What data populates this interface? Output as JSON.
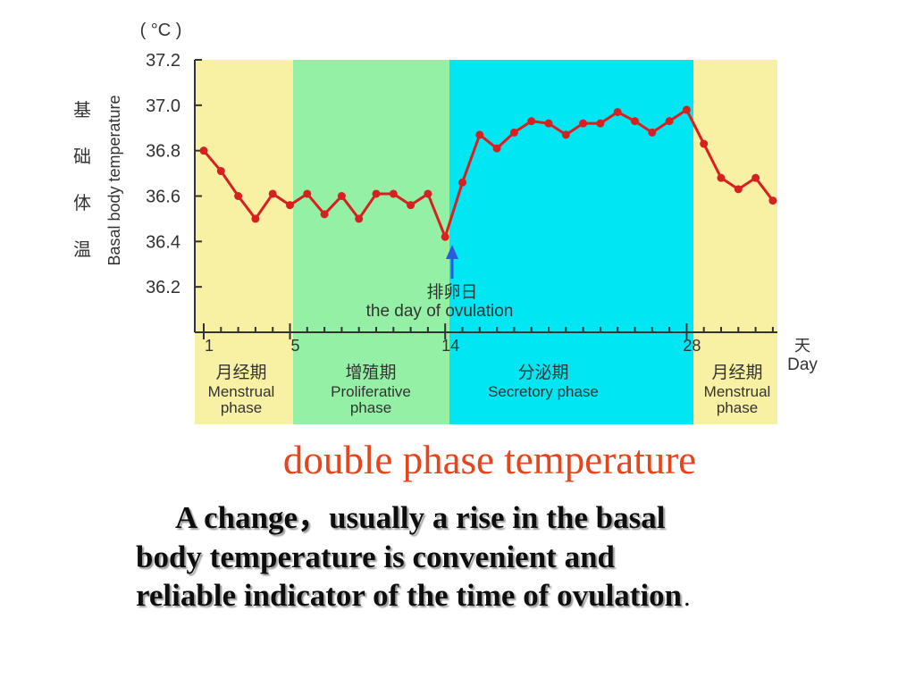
{
  "chart_data": {
    "type": "line",
    "unit_label": "( °C )",
    "y_label_cn": "基础体温",
    "y_label": "Basal body temperature",
    "x_label_cn": "天",
    "x_label": "Day",
    "categories": [
      "1",
      null,
      null,
      null,
      null,
      "5",
      null,
      null,
      null,
      null,
      null,
      null,
      null,
      null,
      "14",
      null,
      null,
      null,
      null,
      null,
      null,
      null,
      null,
      null,
      null,
      null,
      null,
      null,
      "28",
      null,
      null,
      null,
      null,
      null
    ],
    "series": [
      {
        "color": "#d82020",
        "values": [
          36.8,
          36.71,
          36.6,
          36.5,
          36.61,
          36.56,
          36.61,
          36.52,
          36.6,
          36.5,
          36.61,
          36.61,
          36.56,
          36.61,
          36.42,
          36.66,
          36.87,
          36.81,
          36.88,
          36.93,
          36.92,
          36.87,
          36.92,
          36.92,
          36.97,
          36.93,
          36.88,
          36.93,
          36.98,
          36.83,
          36.68,
          36.63,
          36.68,
          36.58
        ]
      }
    ],
    "ylim": [
      36.0,
      37.2
    ],
    "yticks": [
      36.2,
      36.4,
      36.6,
      36.8,
      {
        "value": 37,
        "label": "37.0"
      },
      37.2
    ],
    "annotation_cn": "排卵日",
    "annotation": "the day of ovulation",
    "phases": [
      {
        "cn": "月经期",
        "en": [
          "Menstrual",
          "phase"
        ],
        "color": "#f8f1a4"
      },
      {
        "cn": "增殖期",
        "en": [
          "Proliferative",
          "phase"
        ],
        "color": "#94f0a4"
      },
      {
        "cn": "分泌期",
        "en": [
          "Secretory phase"
        ],
        "color": "#00e6f2"
      },
      {
        "cn": "月经期",
        "en": [
          "Menstrual",
          "phase"
        ],
        "color": "#f8f1a4"
      }
    ]
  },
  "slide": {
    "title": "double phase  temperature",
    "body": [
      "A change，usually a rise in the basal",
      "body temperature is convenient and",
      "reliable indicator of the time of  ovulation"
    ],
    "body_end": "."
  }
}
